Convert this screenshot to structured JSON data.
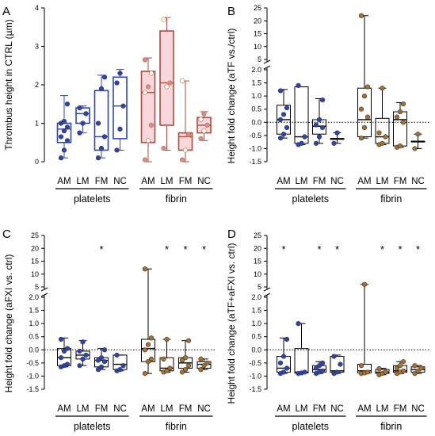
{
  "colors": {
    "blue": "#2b45b8",
    "dark_red": "#b5483a",
    "pink_fill": "#f8d8dc",
    "brown_point": "#a9712b",
    "pink_point": "#d88b93"
  },
  "chart_data": [
    {
      "panel": "A",
      "type": "box",
      "ylabel": "Thrombus height in CTRL (µm)",
      "ylim": [
        0,
        4
      ],
      "yticks": [
        "0",
        "1",
        "2",
        "3",
        "4"
      ],
      "categories": [
        "AM",
        "LM",
        "FM",
        "NC",
        "AM",
        "LM",
        "FM",
        "NC"
      ],
      "groups": [
        "platelets",
        "fibrin"
      ],
      "significance": [
        "",
        "",
        "",
        "",
        "",
        "",
        "",
        ""
      ],
      "series": [
        {
          "group": "platelets",
          "category": "AM",
          "min": 0.1,
          "q1": 0.5,
          "median": 0.85,
          "q3": 1.0,
          "max": 1.72,
          "points": [
            0.1,
            0.3,
            0.55,
            0.65,
            0.8,
            0.9,
            1.0,
            1.05,
            1.5
          ]
        },
        {
          "group": "platelets",
          "category": "LM",
          "min": 0.75,
          "q1": 1.0,
          "median": 1.25,
          "q3": 1.4,
          "max": 1.45,
          "points": [
            0.75,
            1.0,
            1.25,
            1.4
          ]
        },
        {
          "group": "platelets",
          "category": "FM",
          "min": 0.1,
          "q1": 0.3,
          "median": 0.65,
          "q3": 1.85,
          "max": 2.25,
          "points": [
            0.1,
            0.35,
            0.65,
            1.0,
            1.9,
            2.2
          ]
        },
        {
          "group": "platelets",
          "category": "NC",
          "min": 0.3,
          "q1": 0.6,
          "median": 1.45,
          "q3": 2.2,
          "max": 2.4,
          "points": [
            0.3,
            0.85,
            1.45,
            2.05,
            2.3
          ]
        },
        {
          "group": "fibrin",
          "category": "AM",
          "min": 0.0,
          "q1": 0.5,
          "median": 1.8,
          "q3": 2.35,
          "max": 2.7,
          "points": [
            0.05,
            0.55,
            0.95,
            1.8,
            1.95,
            2.3,
            2.65
          ]
        },
        {
          "group": "fibrin",
          "category": "LM",
          "min": 0.3,
          "q1": 0.95,
          "median": 2.05,
          "q3": 3.4,
          "max": 3.75,
          "points": [
            0.35,
            1.95,
            2.05,
            3.7
          ]
        },
        {
          "group": "fibrin",
          "category": "FM",
          "min": 0.0,
          "q1": 0.3,
          "median": 0.65,
          "q3": 0.75,
          "max": 2.1,
          "points": [
            0.05,
            0.3,
            0.7,
            2.1
          ]
        },
        {
          "group": "fibrin",
          "category": "NC",
          "min": 0.55,
          "q1": 0.75,
          "median": 0.95,
          "q3": 1.15,
          "max": 1.3,
          "points": [
            0.6,
            0.8,
            0.95,
            1.1,
            1.25
          ]
        }
      ]
    },
    {
      "panel": "B",
      "type": "box",
      "ylabel": "Height fold change (aTF vs./ctrl)",
      "ylim": [
        -1.5,
        25
      ],
      "yticks": [
        "25",
        "20",
        "15",
        "10",
        "5",
        "2.0",
        "1.5",
        "1.0",
        "0.5",
        "0.0",
        "-0.5",
        "-1.0",
        "-1.5"
      ],
      "categories": [
        "AM",
        "LM",
        "FM",
        "NC",
        "AM",
        "LM",
        "FM",
        "NC"
      ],
      "groups": [
        "platelets",
        "fibrin"
      ],
      "significance": [
        "",
        "",
        "",
        "",
        "",
        "",
        "",
        ""
      ],
      "series": [
        {
          "group": "platelets",
          "category": "AM",
          "min": -0.6,
          "q1": -0.45,
          "median": 0.1,
          "q3": 0.65,
          "max": 1.25,
          "points": [
            -0.6,
            -0.45,
            -0.2,
            0.1,
            0.3,
            0.55,
            1.2
          ]
        },
        {
          "group": "platelets",
          "category": "LM",
          "min": -0.85,
          "q1": -0.8,
          "median": -0.55,
          "q3": 1.35,
          "max": 1.35,
          "points": [
            -0.85,
            -0.8,
            -0.55,
            1.4
          ]
        },
        {
          "group": "platelets",
          "category": "FM",
          "min": -0.8,
          "q1": -0.45,
          "median": -0.15,
          "q3": 0.1,
          "max": 0.9,
          "points": [
            -0.8,
            -0.55,
            -0.2,
            -0.1,
            0.1,
            0.85
          ]
        },
        {
          "group": "platelets",
          "category": "NC",
          "min": -0.8,
          "q1": -0.62,
          "median": -0.62,
          "q3": -0.62,
          "max": -0.4,
          "points": [
            -0.8,
            -0.4
          ]
        },
        {
          "group": "fibrin",
          "category": "AM",
          "min": -0.6,
          "q1": -0.55,
          "median": 0.1,
          "q3": 1.3,
          "max": 22,
          "points": [
            -0.6,
            -0.2,
            0.2,
            0.5,
            1.0,
            1.35,
            22
          ]
        },
        {
          "group": "fibrin",
          "category": "LM",
          "min": -0.85,
          "q1": -0.8,
          "median": -0.55,
          "q3": 0.15,
          "max": 1.3,
          "points": [
            -0.85,
            -0.8,
            -0.55,
            -0.4,
            1.3
          ]
        },
        {
          "group": "fibrin",
          "category": "FM",
          "min": -0.95,
          "q1": -0.9,
          "median": 0.1,
          "q3": 0.4,
          "max": 0.75,
          "points": [
            -0.95,
            -0.9,
            0.0,
            0.2,
            0.4,
            0.7
          ]
        },
        {
          "group": "fibrin",
          "category": "NC",
          "min": -1.0,
          "q1": -0.72,
          "median": -0.72,
          "q3": -0.72,
          "max": -0.45,
          "points": [
            -1.0,
            -0.45
          ]
        }
      ]
    },
    {
      "panel": "C",
      "type": "box",
      "ylabel": "Height fold change (aFXI vs. ctrl)",
      "ylim": [
        -1.5,
        25
      ],
      "yticks": [
        "25",
        "20",
        "15",
        "10",
        "5",
        "2.0",
        "1.5",
        "1.0",
        "0.5",
        "0.0",
        "-0.5",
        "-1.0",
        "-1.5"
      ],
      "categories": [
        "AM",
        "LM",
        "FM",
        "NC",
        "AM",
        "LM",
        "FM",
        "NC"
      ],
      "groups": [
        "platelets",
        "fibrin"
      ],
      "significance": [
        "",
        "",
        "*",
        "",
        "",
        "*",
        "*",
        "*"
      ],
      "series": [
        {
          "group": "platelets",
          "category": "AM",
          "min": -0.65,
          "q1": -0.6,
          "median": -0.3,
          "q3": 0.05,
          "max": 0.45,
          "points": [
            -0.65,
            -0.6,
            -0.55,
            -0.3,
            -0.05,
            0.05,
            0.4
          ]
        },
        {
          "group": "platelets",
          "category": "LM",
          "min": -0.6,
          "q1": -0.35,
          "median": -0.2,
          "q3": -0.05,
          "max": 0.35,
          "points": [
            -0.6,
            -0.35,
            -0.2,
            -0.05,
            0.3
          ]
        },
        {
          "group": "platelets",
          "category": "FM",
          "min": -0.75,
          "q1": -0.65,
          "median": -0.4,
          "q3": -0.3,
          "max": 0.05,
          "points": [
            -0.75,
            -0.65,
            -0.45,
            -0.4,
            -0.3,
            0.0
          ]
        },
        {
          "group": "platelets",
          "category": "NC",
          "min": -0.8,
          "q1": -0.75,
          "median": -0.55,
          "q3": -0.2,
          "max": -0.2,
          "points": [
            -0.8,
            -0.75,
            -0.6,
            -0.2
          ]
        },
        {
          "group": "fibrin",
          "category": "AM",
          "min": -0.9,
          "q1": -0.45,
          "median": 0.05,
          "q3": 0.4,
          "max": 12,
          "points": [
            -0.9,
            -0.45,
            -0.35,
            0.0,
            0.2,
            0.45,
            12
          ]
        },
        {
          "group": "fibrin",
          "category": "LM",
          "min": -0.85,
          "q1": -0.8,
          "median": -0.7,
          "q3": -0.3,
          "max": 0.4,
          "points": [
            -0.85,
            -0.8,
            -0.7,
            -0.35,
            0.4
          ]
        },
        {
          "group": "fibrin",
          "category": "FM",
          "min": -0.85,
          "q1": -0.7,
          "median": -0.5,
          "q3": -0.3,
          "max": 0.35,
          "points": [
            -0.85,
            -0.75,
            -0.6,
            -0.4,
            -0.3,
            0.35
          ]
        },
        {
          "group": "fibrin",
          "category": "NC",
          "min": -0.75,
          "q1": -0.7,
          "median": -0.55,
          "q3": -0.45,
          "max": -0.35,
          "points": [
            -0.75,
            -0.6,
            -0.5,
            -0.35
          ]
        }
      ]
    },
    {
      "panel": "D",
      "type": "box",
      "ylabel": "Height fold change (aTF+aFXI vs. ctrl)",
      "ylim": [
        -1.5,
        25
      ],
      "yticks": [
        "25",
        "20",
        "15",
        "10",
        "5",
        "2.0",
        "1.5",
        "1.0",
        "0.5",
        "0.0",
        "-0.5",
        "-1.0",
        "-1.5"
      ],
      "categories": [
        "AM",
        "LM",
        "FM",
        "NC",
        "AM",
        "LM",
        "FM",
        "NC"
      ],
      "groups": [
        "platelets",
        "fibrin"
      ],
      "significance": [
        "*",
        "",
        "*",
        "*",
        "",
        "*",
        "*",
        "*"
      ],
      "series": [
        {
          "group": "platelets",
          "category": "AM",
          "min": -0.9,
          "q1": -0.85,
          "median": -0.7,
          "q3": -0.25,
          "max": 0.45,
          "points": [
            -0.9,
            -0.85,
            -0.7,
            -0.5,
            -0.25,
            0.4
          ]
        },
        {
          "group": "platelets",
          "category": "LM",
          "min": -0.9,
          "q1": -0.88,
          "median": -0.85,
          "q3": 0.05,
          "max": 1.0,
          "points": [
            -0.9,
            -0.88,
            -0.85,
            1.0
          ]
        },
        {
          "group": "platelets",
          "category": "FM",
          "min": -0.9,
          "q1": -0.85,
          "median": -0.75,
          "q3": -0.6,
          "max": -0.45,
          "points": [
            -0.9,
            -0.85,
            -0.8,
            -0.7,
            -0.6,
            -0.5
          ]
        },
        {
          "group": "platelets",
          "category": "NC",
          "min": -0.9,
          "q1": -0.85,
          "median": -0.8,
          "q3": -0.25,
          "max": -0.2,
          "points": [
            -0.9,
            -0.85,
            -0.55,
            -0.25
          ]
        },
        {
          "group": "fibrin",
          "category": "AM",
          "min": -0.9,
          "q1": -0.88,
          "median": -0.8,
          "q3": -0.55,
          "max": 6,
          "points": [
            -0.9,
            -0.88,
            -0.85,
            -0.6,
            6
          ]
        },
        {
          "group": "fibrin",
          "category": "LM",
          "min": -0.95,
          "q1": -0.9,
          "median": -0.85,
          "q3": -0.75,
          "max": -0.7,
          "points": [
            -0.95,
            -0.9,
            -0.85,
            -0.72
          ]
        },
        {
          "group": "fibrin",
          "category": "FM",
          "min": -0.9,
          "q1": -0.85,
          "median": -0.8,
          "q3": -0.6,
          "max": -0.45,
          "points": [
            -0.9,
            -0.85,
            -0.8,
            -0.7,
            -0.6,
            -0.45
          ]
        },
        {
          "group": "fibrin",
          "category": "NC",
          "min": -0.9,
          "q1": -0.85,
          "median": -0.75,
          "q3": -0.65,
          "max": -0.6,
          "points": [
            -0.9,
            -0.8,
            -0.7,
            -0.6
          ]
        }
      ]
    }
  ]
}
